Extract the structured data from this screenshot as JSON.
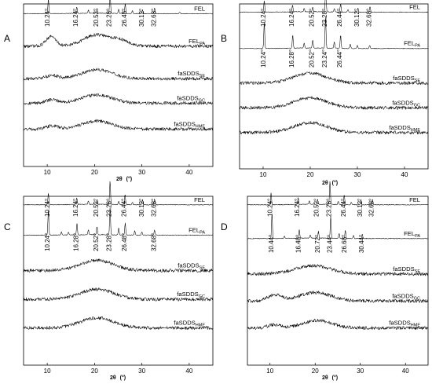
{
  "chart_data": [
    {
      "type": "line",
      "panel": "A",
      "xlabel_main": "2θ",
      "xlabel_unit": "(°)",
      "xlim": [
        5,
        45
      ],
      "xticks": [
        10,
        20,
        30,
        40
      ],
      "series": [
        {
          "name": "FEL",
          "sub": "",
          "kind": "crystal",
          "base": 0.06,
          "peaks": [
            [
              10.24,
              0.09
            ],
            [
              16.24,
              0.04
            ],
            [
              20.52,
              0.03
            ],
            [
              23.28,
              0.13
            ],
            [
              26.48,
              0.06
            ],
            [
              30.12,
              0.025
            ],
            [
              32.68,
              0.035
            ],
            [
              18.7,
              0.02
            ],
            [
              25.1,
              0.025
            ],
            [
              28.0,
              0.018
            ],
            [
              38.0,
              0.01
            ]
          ]
        },
        {
          "name": "FEL",
          "sub": "PA",
          "kind": "amorph",
          "base": 0.26,
          "halos": [
            [
              10.8,
              1.5,
              0.06
            ],
            [
              20.5,
              4.0,
              0.07
            ],
            [
              25.5,
              2.5,
              0.03
            ]
          ]
        },
        {
          "name": "faSDDS",
          "sub": "SE",
          "kind": "amorph",
          "base": 0.46,
          "halos": [
            [
              11.0,
              1.8,
              0.02
            ],
            [
              20.5,
              4.5,
              0.055
            ]
          ]
        },
        {
          "name": "faSDDS",
          "sub": "GC",
          "kind": "amorph",
          "base": 0.61,
          "halos": [
            [
              11.0,
              1.8,
              0.02
            ],
            [
              20.5,
              4.5,
              0.05
            ]
          ]
        },
        {
          "name": "faSDDS",
          "sub": "HME",
          "kind": "amorph",
          "base": 0.77,
          "halos": [
            [
              11.0,
              1.8,
              0.02
            ],
            [
              20.5,
              4.5,
              0.05
            ]
          ]
        }
      ],
      "annotations": [
        {
          "text": "10.24°",
          "x": 10.24
        },
        {
          "text": "16.24°",
          "x": 16.24
        },
        {
          "text": "20.52°",
          "x": 20.52
        },
        {
          "text": "23.28°",
          "x": 23.28
        },
        {
          "text": "26.48°",
          "x": 26.48
        },
        {
          "text": "30.12°",
          "x": 30.12
        },
        {
          "text": "32.68°",
          "x": 32.68
        }
      ]
    },
    {
      "type": "line",
      "panel": "B",
      "xlabel_main": "2θ",
      "xlabel_unit": "(°)",
      "xlim": [
        5,
        45
      ],
      "xticks": [
        10,
        20,
        30,
        40
      ],
      "series": [
        {
          "name": "FEL",
          "sub": "",
          "kind": "crystal",
          "base": 0.05,
          "peaks": [
            [
              10.24,
              0.07
            ],
            [
              16.24,
              0.04
            ],
            [
              20.52,
              0.03
            ],
            [
              23.28,
              0.15
            ],
            [
              26.44,
              0.05
            ],
            [
              30.12,
              0.025
            ],
            [
              32.68,
              0.035
            ],
            [
              18.7,
              0.02
            ],
            [
              25.1,
              0.02
            ],
            [
              28.0,
              0.015
            ]
          ]
        },
        {
          "name": "FEL",
          "sub": "PA",
          "kind": "crystal",
          "base": 0.27,
          "peaks": [
            [
              10.24,
              0.16
            ],
            [
              16.28,
              0.08
            ],
            [
              20.52,
              0.05
            ],
            [
              23.24,
              0.19
            ],
            [
              26.44,
              0.08
            ],
            [
              18.7,
              0.03
            ],
            [
              25.1,
              0.04
            ],
            [
              28.5,
              0.025
            ],
            [
              30.0,
              0.02
            ],
            [
              32.6,
              0.02
            ]
          ]
        },
        {
          "name": "faSDDS",
          "sub": "SE",
          "kind": "amorph",
          "base": 0.48,
          "halos": [
            [
              20.0,
              5.0,
              0.06
            ]
          ]
        },
        {
          "name": "faSDDS",
          "sub": "GC",
          "kind": "amorph",
          "base": 0.63,
          "halos": [
            [
              20.0,
              5.0,
              0.06
            ]
          ]
        },
        {
          "name": "faSDDS",
          "sub": "HME",
          "kind": "amorph",
          "base": 0.78,
          "halos": [
            [
              20.0,
              5.0,
              0.06
            ]
          ]
        }
      ],
      "annotations": [
        {
          "text": "10.24°",
          "x": 10.24
        },
        {
          "text": "16.24°",
          "x": 16.24
        },
        {
          "text": "20.52°",
          "x": 20.52
        },
        {
          "text": "23.28°",
          "x": 23.28
        },
        {
          "text": "26.44°",
          "x": 26.44
        },
        {
          "text": "30.12°",
          "x": 30.12
        },
        {
          "text": "32.68°",
          "x": 32.68
        },
        {
          "text": "10.24°",
          "x": 10.24
        },
        {
          "text": "16.28°",
          "x": 16.28
        },
        {
          "text": "20.52°",
          "x": 20.52
        },
        {
          "text": "23.24°",
          "x": 23.24
        },
        {
          "text": "26.44°",
          "x": 26.44
        }
      ]
    },
    {
      "type": "line",
      "panel": "C",
      "xlabel_main": "2θ",
      "xlabel_unit": "(°)",
      "xlim": [
        5,
        45
      ],
      "xticks": [
        10,
        20,
        30,
        40
      ],
      "series": [
        {
          "name": "FEL",
          "sub": "",
          "kind": "crystal",
          "base": 0.05,
          "peaks": [
            [
              10.24,
              0.07
            ],
            [
              16.24,
              0.04
            ],
            [
              20.52,
              0.03
            ],
            [
              23.28,
              0.14
            ],
            [
              26.44,
              0.06
            ],
            [
              30.12,
              0.03
            ],
            [
              32.68,
              0.035
            ],
            [
              18.7,
              0.02
            ],
            [
              25.1,
              0.02
            ],
            [
              28.0,
              0.015
            ]
          ]
        },
        {
          "name": "FEL",
          "sub": "PA",
          "kind": "crystal",
          "base": 0.23,
          "peaks": [
            [
              10.24,
              0.15
            ],
            [
              16.28,
              0.07
            ],
            [
              20.52,
              0.05
            ],
            [
              23.28,
              0.16
            ],
            [
              26.48,
              0.07
            ],
            [
              32.68,
              0.03
            ],
            [
              18.7,
              0.03
            ],
            [
              25.1,
              0.04
            ],
            [
              28.5,
              0.025
            ],
            [
              30.0,
              0.02
            ],
            [
              13.0,
              0.02
            ],
            [
              14.5,
              0.015
            ]
          ]
        },
        {
          "name": "faSDDS",
          "sub": "SE",
          "kind": "amorph",
          "base": 0.44,
          "halos": [
            [
              20.5,
              5.0,
              0.06
            ]
          ]
        },
        {
          "name": "faSDDS",
          "sub": "GC",
          "kind": "amorph",
          "base": 0.61,
          "halos": [
            [
              20.5,
              5.0,
              0.06
            ]
          ]
        },
        {
          "name": "faSDDS",
          "sub": "HME",
          "kind": "amorph",
          "base": 0.78,
          "halos": [
            [
              20.5,
              5.0,
              0.06
            ]
          ]
        }
      ],
      "annotations": [
        {
          "text": "10.24°",
          "x": 10.24
        },
        {
          "text": "16.24°",
          "x": 16.24
        },
        {
          "text": "20.52°",
          "x": 20.52
        },
        {
          "text": "23.28°",
          "x": 23.28
        },
        {
          "text": "26.44°",
          "x": 26.44
        },
        {
          "text": "30.12°",
          "x": 30.12
        },
        {
          "text": "32.68°",
          "x": 32.68
        },
        {
          "text": "10.24°",
          "x": 10.24
        },
        {
          "text": "16.28°",
          "x": 16.28
        },
        {
          "text": "20.52°",
          "x": 20.52
        },
        {
          "text": "23.28°",
          "x": 23.28
        },
        {
          "text": "26.48°",
          "x": 26.48
        },
        {
          "text": "32.68°",
          "x": 32.68
        }
      ]
    },
    {
      "type": "line",
      "panel": "D",
      "xlabel_main": "2θ",
      "xlabel_unit": "(°)",
      "xlim": [
        5,
        45
      ],
      "xticks": [
        10,
        20,
        30,
        40
      ],
      "series": [
        {
          "name": "FEL",
          "sub": "",
          "kind": "crystal",
          "base": 0.05,
          "peaks": [
            [
              10.24,
              0.07
            ],
            [
              16.24,
              0.04
            ],
            [
              20.52,
              0.03
            ],
            [
              23.28,
              0.14
            ],
            [
              26.44,
              0.06
            ],
            [
              30.12,
              0.03
            ],
            [
              32.68,
              0.035
            ],
            [
              18.7,
              0.02
            ],
            [
              25.1,
              0.02
            ],
            [
              28.0,
              0.015
            ]
          ]
        },
        {
          "name": "FEL",
          "sub": "PA",
          "kind": "crystal",
          "base": 0.25,
          "peaks": [
            [
              10.44,
              0.15
            ],
            [
              16.48,
              0.05
            ],
            [
              20.72,
              0.04
            ],
            [
              23.44,
              0.13
            ],
            [
              26.68,
              0.05
            ],
            [
              30.44,
              0.025
            ],
            [
              18.9,
              0.02
            ],
            [
              25.3,
              0.03
            ],
            [
              28.5,
              0.02
            ],
            [
              13.2,
              0.015
            ]
          ]
        },
        {
          "name": "faSDDS",
          "sub": "SE",
          "kind": "amorph",
          "base": 0.46,
          "halos": [
            [
              19.5,
              5.5,
              0.05
            ]
          ]
        },
        {
          "name": "faSDDS",
          "sub": "GC",
          "kind": "amorph",
          "base": 0.62,
          "halos": [
            [
              11.0,
              2.2,
              0.035
            ],
            [
              20.0,
              5.0,
              0.05
            ]
          ]
        },
        {
          "name": "faSDDS",
          "sub": "HME",
          "kind": "amorph",
          "base": 0.78,
          "halos": [
            [
              11.0,
              2.0,
              0.02
            ],
            [
              20.5,
              4.5,
              0.045
            ]
          ]
        }
      ],
      "annotations": [
        {
          "text": "10.24°",
          "x": 10.24
        },
        {
          "text": "16.24°",
          "x": 16.24
        },
        {
          "text": "20.52°",
          "x": 20.52
        },
        {
          "text": "23.28°",
          "x": 23.28
        },
        {
          "text": "26.44°",
          "x": 26.44
        },
        {
          "text": "30.12°",
          "x": 30.12
        },
        {
          "text": "32.68°",
          "x": 32.68
        },
        {
          "text": "10.44°",
          "x": 10.44
        },
        {
          "text": "16.48°",
          "x": 16.48
        },
        {
          "text": "20.72°",
          "x": 20.72
        },
        {
          "text": "23.44°",
          "x": 23.44
        },
        {
          "text": "26.68°",
          "x": 26.68
        },
        {
          "text": "30.44°",
          "x": 30.44
        }
      ]
    }
  ]
}
